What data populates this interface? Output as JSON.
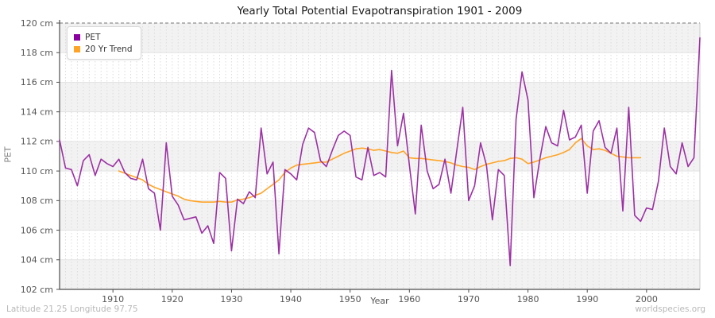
{
  "header": {
    "title": "Yearly Total Potential Evapotranspiration 1901 - 2009"
  },
  "legend": {
    "pet_label": "PET",
    "trend_label": "20 Yr Trend"
  },
  "axes": {
    "y_label": "PET",
    "x_label": "Year",
    "y_tick_labels": [
      "120 cm",
      "118 cm",
      "116 cm",
      "114 cm",
      "112 cm",
      "110 cm",
      "108 cm",
      "106 cm",
      "104 cm",
      "102 cm"
    ],
    "x_tick_labels": [
      "1910",
      "1920",
      "1930",
      "1940",
      "1950",
      "1960",
      "1970",
      "1980",
      "1990",
      "2000"
    ]
  },
  "footer": {
    "left": "Latitude 21.25 Longitude 97.75",
    "right": "worldspecies.org"
  },
  "colors": {
    "pet_line": "#9C30A4",
    "pet_marker": "#8B00A0",
    "trend_line": "#FFA427",
    "band_fill": "#f2f2f2",
    "grid_h": "#e3e3e3",
    "grid_v": "#dcdcdc",
    "axis": "#4d4d4d",
    "right_border": "#cccccc",
    "top_dashed": "#777777",
    "tick_text": "#555555"
  },
  "chart_data": {
    "type": "line",
    "title": "Yearly Total Potential Evapotranspiration 1901 - 2009",
    "xlabel": "Year",
    "ylabel": "PET",
    "xlim": [
      1901,
      2009
    ],
    "ylim": [
      102,
      120
    ],
    "y_tick_values": [
      120,
      118,
      116,
      114,
      112,
      110,
      108,
      106,
      104,
      102
    ],
    "x_tick_values": [
      1910,
      1920,
      1930,
      1940,
      1950,
      1960,
      1970,
      1980,
      1990,
      2000
    ],
    "grid": true,
    "legend_position": "upper-left",
    "series": [
      {
        "name": "PET",
        "start_year": 1901,
        "values": [
          112.1,
          110.2,
          110.1,
          109.0,
          110.7,
          111.1,
          109.7,
          110.8,
          110.5,
          110.3,
          110.8,
          109.9,
          109.5,
          109.4,
          110.8,
          108.8,
          108.5,
          106.0,
          111.9,
          108.3,
          107.7,
          106.7,
          106.8,
          106.9,
          105.8,
          106.3,
          105.1,
          109.9,
          109.5,
          104.6,
          108.1,
          107.8,
          108.6,
          108.2,
          112.9,
          109.8,
          110.6,
          104.4,
          110.1,
          109.8,
          109.4,
          111.8,
          112.9,
          112.6,
          110.7,
          110.3,
          111.4,
          112.4,
          112.7,
          112.4,
          109.6,
          109.4,
          111.6,
          109.7,
          109.9,
          109.6,
          116.8,
          111.7,
          113.9,
          110.4,
          107.1,
          113.1,
          110.0,
          108.8,
          109.1,
          110.8,
          108.5,
          111.4,
          114.3,
          108.0,
          109.0,
          111.9,
          110.4,
          106.7,
          110.1,
          109.7,
          103.6,
          113.5,
          116.7,
          114.8,
          108.2,
          110.8,
          113.0,
          111.9,
          111.7,
          114.1,
          112.1,
          112.3,
          113.1,
          108.5,
          112.7,
          113.4,
          111.6,
          111.2,
          112.9,
          107.3,
          114.3,
          107.0,
          106.6,
          107.5,
          107.4,
          109.3,
          112.9,
          110.3,
          109.8,
          111.9,
          110.3,
          110.9,
          119.0
        ]
      },
      {
        "name": "20 Yr Trend",
        "start_year": 1911,
        "values": [
          110.0,
          109.85,
          109.7,
          109.55,
          109.4,
          109.1,
          108.9,
          108.75,
          108.6,
          108.45,
          108.3,
          108.1,
          108.0,
          107.95,
          107.9,
          107.9,
          107.9,
          107.95,
          107.9,
          107.9,
          108.05,
          108.1,
          108.2,
          108.35,
          108.5,
          108.8,
          109.1,
          109.4,
          109.9,
          110.2,
          110.4,
          110.45,
          110.5,
          110.55,
          110.6,
          110.6,
          110.8,
          111.0,
          111.2,
          111.35,
          111.5,
          111.55,
          111.5,
          111.4,
          111.45,
          111.35,
          111.25,
          111.2,
          111.35,
          110.9,
          110.85,
          110.85,
          110.8,
          110.75,
          110.7,
          110.65,
          110.55,
          110.4,
          110.3,
          110.25,
          110.1,
          110.3,
          110.45,
          110.55,
          110.65,
          110.7,
          110.85,
          110.9,
          110.8,
          110.5,
          110.6,
          110.75,
          110.9,
          111.0,
          111.1,
          111.25,
          111.45,
          111.9,
          112.2,
          111.7,
          111.45,
          111.5,
          111.4,
          111.2,
          111.0,
          110.95,
          110.9,
          110.9,
          110.9
        ]
      }
    ]
  }
}
